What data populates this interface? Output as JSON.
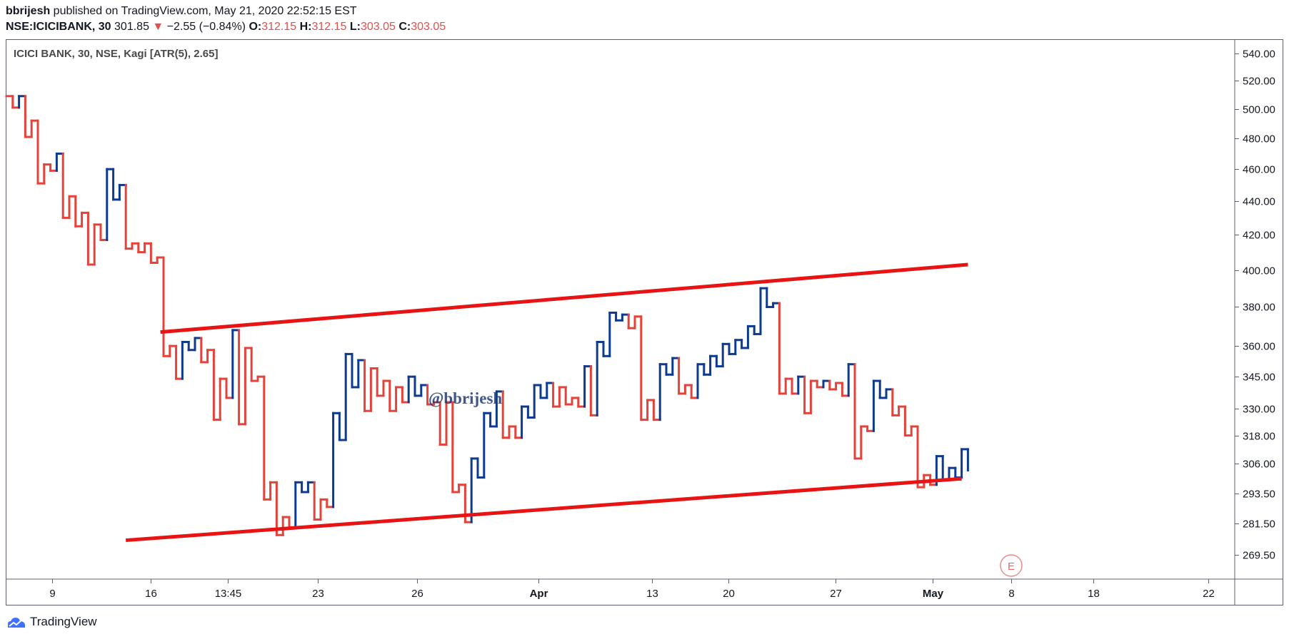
{
  "header": {
    "author": "bbrijesh",
    "published": " published on TradingView.com, May 21, 2020 22:52:15 EST",
    "symbol": "NSE:ICICIBANK, 30",
    "last": " 301.85 ",
    "change_arrow": "▼",
    "change": " −2.55 (−0.84%) ",
    "o_label": "O:",
    "o_value": "312.15",
    "h_label": " H:",
    "h_value": "312.15",
    "l_label": " L:",
    "l_value": "303.05",
    "c_label": " C:",
    "c_value": "303.05"
  },
  "legend": "ICICI BANK, 30, NSE, Kagi [ATR(5), 2.65]",
  "watermark": "@bbrijesh",
  "earnings_marker": "E",
  "footer": {
    "brand": "TradingView"
  },
  "colors": {
    "yang": "#0d3b91",
    "yin": "#e5423a",
    "trend": "#e81414",
    "axis": "#5d606b"
  },
  "chart_data": {
    "type": "line",
    "style": "kagi",
    "y_scale": "log",
    "ylim": [
      259.5,
      550.0
    ],
    "y_ticks": [
      "540.00",
      "520.00",
      "500.00",
      "480.00",
      "460.00",
      "440.00",
      "420.00",
      "400.00",
      "380.00",
      "360.00",
      "345.00",
      "330.00",
      "318.00",
      "306.00",
      "293.50",
      "281.50",
      "269.50"
    ],
    "x_ticks": [
      "9",
      "16",
      "13:45",
      "23",
      "26",
      "Apr",
      "13",
      "20",
      "27",
      "May",
      "8",
      "18",
      "22"
    ],
    "bold_x_ticks": [
      "Apr",
      "May"
    ],
    "kagi": [
      {
        "step": 0,
        "price": 509.0,
        "yang": false
      },
      {
        "step": 1,
        "price": 501.0,
        "yang": false
      },
      {
        "step": 2,
        "price": 509.0,
        "yang": true
      },
      {
        "step": 3,
        "price": 481.0,
        "yang": false
      },
      {
        "step": 4,
        "price": 492.0,
        "yang": false
      },
      {
        "step": 5,
        "price": 451.0,
        "yang": false
      },
      {
        "step": 6,
        "price": 463.0,
        "yang": false
      },
      {
        "step": 7,
        "price": 459.0,
        "yang": false
      },
      {
        "step": 8,
        "price": 470.0,
        "yang": true
      },
      {
        "step": 9,
        "price": 430.0,
        "yang": false
      },
      {
        "step": 10,
        "price": 443.0,
        "yang": false
      },
      {
        "step": 11,
        "price": 425.0,
        "yang": false
      },
      {
        "step": 12,
        "price": 433.0,
        "yang": false
      },
      {
        "step": 13,
        "price": 403.0,
        "yang": false
      },
      {
        "step": 14,
        "price": 426.0,
        "yang": false
      },
      {
        "step": 15,
        "price": 417.0,
        "yang": false
      },
      {
        "step": 16,
        "price": 460.0,
        "yang": true
      },
      {
        "step": 17,
        "price": 441.0,
        "yang": true
      },
      {
        "step": 18,
        "price": 450.0,
        "yang": true
      },
      {
        "step": 19,
        "price": 412.0,
        "yang": false
      },
      {
        "step": 20,
        "price": 415.0,
        "yang": false
      },
      {
        "step": 21,
        "price": 410.0,
        "yang": false
      },
      {
        "step": 22,
        "price": 415.0,
        "yang": false
      },
      {
        "step": 23,
        "price": 404.0,
        "yang": false
      },
      {
        "step": 24,
        "price": 407.0,
        "yang": false
      },
      {
        "step": 25,
        "price": 355.0,
        "yang": false
      },
      {
        "step": 26,
        "price": 360.0,
        "yang": false
      },
      {
        "step": 27,
        "price": 344.0,
        "yang": false
      },
      {
        "step": 28,
        "price": 362.0,
        "yang": true
      },
      {
        "step": 29,
        "price": 358.0,
        "yang": true
      },
      {
        "step": 30,
        "price": 364.0,
        "yang": true
      },
      {
        "step": 31,
        "price": 352.0,
        "yang": false
      },
      {
        "step": 32,
        "price": 358.0,
        "yang": false
      },
      {
        "step": 33,
        "price": 325.0,
        "yang": false
      },
      {
        "step": 34,
        "price": 344.0,
        "yang": false
      },
      {
        "step": 35,
        "price": 335.0,
        "yang": false
      },
      {
        "step": 36,
        "price": 368.0,
        "yang": true
      },
      {
        "step": 37,
        "price": 323.0,
        "yang": false
      },
      {
        "step": 38,
        "price": 359.0,
        "yang": false
      },
      {
        "step": 39,
        "price": 343.0,
        "yang": false
      },
      {
        "step": 40,
        "price": 345.0,
        "yang": false
      },
      {
        "step": 41,
        "price": 291.0,
        "yang": false
      },
      {
        "step": 42,
        "price": 298.0,
        "yang": false
      },
      {
        "step": 43,
        "price": 277.0,
        "yang": false
      },
      {
        "step": 44,
        "price": 284.0,
        "yang": false
      },
      {
        "step": 45,
        "price": 280.0,
        "yang": false
      },
      {
        "step": 46,
        "price": 298.0,
        "yang": true
      },
      {
        "step": 47,
        "price": 294.0,
        "yang": true
      },
      {
        "step": 48,
        "price": 298.0,
        "yang": true
      },
      {
        "step": 49,
        "price": 283.0,
        "yang": false
      },
      {
        "step": 50,
        "price": 291.0,
        "yang": false
      },
      {
        "step": 51,
        "price": 288.0,
        "yang": false
      },
      {
        "step": 52,
        "price": 328.0,
        "yang": true
      },
      {
        "step": 53,
        "price": 316.0,
        "yang": true
      },
      {
        "step": 54,
        "price": 356.0,
        "yang": true
      },
      {
        "step": 55,
        "price": 340.0,
        "yang": true
      },
      {
        "step": 56,
        "price": 353.0,
        "yang": true
      },
      {
        "step": 57,
        "price": 329.0,
        "yang": false
      },
      {
        "step": 58,
        "price": 349.0,
        "yang": false
      },
      {
        "step": 59,
        "price": 336.0,
        "yang": false
      },
      {
        "step": 60,
        "price": 343.0,
        "yang": false
      },
      {
        "step": 61,
        "price": 329.0,
        "yang": false
      },
      {
        "step": 62,
        "price": 340.0,
        "yang": false
      },
      {
        "step": 63,
        "price": 333.0,
        "yang": false
      },
      {
        "step": 64,
        "price": 345.0,
        "yang": true
      },
      {
        "step": 65,
        "price": 336.0,
        "yang": true
      },
      {
        "step": 66,
        "price": 341.0,
        "yang": true
      },
      {
        "step": 67,
        "price": 332.0,
        "yang": false
      },
      {
        "step": 68,
        "price": 333.0,
        "yang": false
      },
      {
        "step": 69,
        "price": 314.0,
        "yang": false
      },
      {
        "step": 70,
        "price": 333.0,
        "yang": false
      },
      {
        "step": 71,
        "price": 294.0,
        "yang": false
      },
      {
        "step": 72,
        "price": 297.0,
        "yang": false
      },
      {
        "step": 73,
        "price": 282.0,
        "yang": false
      },
      {
        "step": 74,
        "price": 308.0,
        "yang": true
      },
      {
        "step": 75,
        "price": 300.0,
        "yang": true
      },
      {
        "step": 76,
        "price": 328.0,
        "yang": true
      },
      {
        "step": 77,
        "price": 322.0,
        "yang": true
      },
      {
        "step": 78,
        "price": 338.0,
        "yang": true
      },
      {
        "step": 79,
        "price": 317.0,
        "yang": false
      },
      {
        "step": 80,
        "price": 322.0,
        "yang": false
      },
      {
        "step": 81,
        "price": 317.0,
        "yang": false
      },
      {
        "step": 82,
        "price": 331.0,
        "yang": true
      },
      {
        "step": 83,
        "price": 326.0,
        "yang": true
      },
      {
        "step": 84,
        "price": 341.0,
        "yang": true
      },
      {
        "step": 85,
        "price": 335.0,
        "yang": true
      },
      {
        "step": 86,
        "price": 342.0,
        "yang": true
      },
      {
        "step": 87,
        "price": 331.0,
        "yang": false
      },
      {
        "step": 88,
        "price": 340.0,
        "yang": false
      },
      {
        "step": 89,
        "price": 332.0,
        "yang": false
      },
      {
        "step": 90,
        "price": 335.0,
        "yang": false
      },
      {
        "step": 91,
        "price": 331.0,
        "yang": false
      },
      {
        "step": 92,
        "price": 350.0,
        "yang": true
      },
      {
        "step": 93,
        "price": 327.0,
        "yang": false
      },
      {
        "step": 94,
        "price": 362.0,
        "yang": true
      },
      {
        "step": 95,
        "price": 355.0,
        "yang": true
      },
      {
        "step": 96,
        "price": 377.0,
        "yang": true
      },
      {
        "step": 97,
        "price": 373.0,
        "yang": true
      },
      {
        "step": 98,
        "price": 376.0,
        "yang": true
      },
      {
        "step": 99,
        "price": 369.0,
        "yang": false
      },
      {
        "step": 100,
        "price": 375.0,
        "yang": false
      },
      {
        "step": 101,
        "price": 325.0,
        "yang": false
      },
      {
        "step": 102,
        "price": 334.0,
        "yang": false
      },
      {
        "step": 103,
        "price": 325.0,
        "yang": false
      },
      {
        "step": 104,
        "price": 351.0,
        "yang": true
      },
      {
        "step": 105,
        "price": 346.0,
        "yang": true
      },
      {
        "step": 106,
        "price": 354.0,
        "yang": true
      },
      {
        "step": 107,
        "price": 337.0,
        "yang": false
      },
      {
        "step": 108,
        "price": 341.0,
        "yang": false
      },
      {
        "step": 109,
        "price": 335.0,
        "yang": false
      },
      {
        "step": 110,
        "price": 351.0,
        "yang": true
      },
      {
        "step": 111,
        "price": 346.0,
        "yang": true
      },
      {
        "step": 112,
        "price": 355.0,
        "yang": true
      },
      {
        "step": 113,
        "price": 350.0,
        "yang": true
      },
      {
        "step": 114,
        "price": 361.0,
        "yang": true
      },
      {
        "step": 115,
        "price": 356.0,
        "yang": true
      },
      {
        "step": 116,
        "price": 363.0,
        "yang": true
      },
      {
        "step": 117,
        "price": 359.0,
        "yang": true
      },
      {
        "step": 118,
        "price": 370.0,
        "yang": true
      },
      {
        "step": 119,
        "price": 366.0,
        "yang": true
      },
      {
        "step": 120,
        "price": 390.0,
        "yang": true
      },
      {
        "step": 121,
        "price": 380.0,
        "yang": true
      },
      {
        "step": 122,
        "price": 382.0,
        "yang": true
      },
      {
        "step": 123,
        "price": 337.0,
        "yang": false
      },
      {
        "step": 124,
        "price": 344.0,
        "yang": false
      },
      {
        "step": 125,
        "price": 337.0,
        "yang": false
      },
      {
        "step": 126,
        "price": 345.0,
        "yang": true
      },
      {
        "step": 127,
        "price": 328.0,
        "yang": false
      },
      {
        "step": 128,
        "price": 343.0,
        "yang": false
      },
      {
        "step": 129,
        "price": 340.0,
        "yang": false
      },
      {
        "step": 130,
        "price": 343.0,
        "yang": true
      },
      {
        "step": 131,
        "price": 339.0,
        "yang": false
      },
      {
        "step": 132,
        "price": 342.0,
        "yang": false
      },
      {
        "step": 133,
        "price": 336.0,
        "yang": false
      },
      {
        "step": 134,
        "price": 351.0,
        "yang": true
      },
      {
        "step": 135,
        "price": 308.0,
        "yang": false
      },
      {
        "step": 136,
        "price": 322.0,
        "yang": false
      },
      {
        "step": 137,
        "price": 320.0,
        "yang": false
      },
      {
        "step": 138,
        "price": 343.0,
        "yang": true
      },
      {
        "step": 139,
        "price": 335.0,
        "yang": true
      },
      {
        "step": 140,
        "price": 339.0,
        "yang": true
      },
      {
        "step": 141,
        "price": 327.0,
        "yang": false
      },
      {
        "step": 142,
        "price": 331.0,
        "yang": false
      },
      {
        "step": 143,
        "price": 318.0,
        "yang": false
      },
      {
        "step": 144,
        "price": 322.0,
        "yang": false
      },
      {
        "step": 145,
        "price": 296.0,
        "yang": false
      },
      {
        "step": 146,
        "price": 301.0,
        "yang": false
      },
      {
        "step": 147,
        "price": 297.0,
        "yang": false
      },
      {
        "step": 148,
        "price": 309.0,
        "yang": true
      },
      {
        "step": 149,
        "price": 299.0,
        "yang": true
      },
      {
        "step": 150,
        "price": 304.0,
        "yang": true
      },
      {
        "step": 151,
        "price": 300.0,
        "yang": true
      },
      {
        "step": 152,
        "price": 312.0,
        "yang": true
      },
      {
        "step": 153,
        "price": 303.0,
        "yang": true
      }
    ],
    "trend_lines": [
      {
        "name": "upper-trend-line",
        "from": {
          "step": 24.5,
          "price": 367.0
        },
        "to": {
          "step": 153.0,
          "price": 403.0
        }
      },
      {
        "name": "lower-trend-line",
        "from": {
          "step": 19.0,
          "price": 275.0
        },
        "to": {
          "step": 152.0,
          "price": 299.5
        }
      }
    ]
  }
}
